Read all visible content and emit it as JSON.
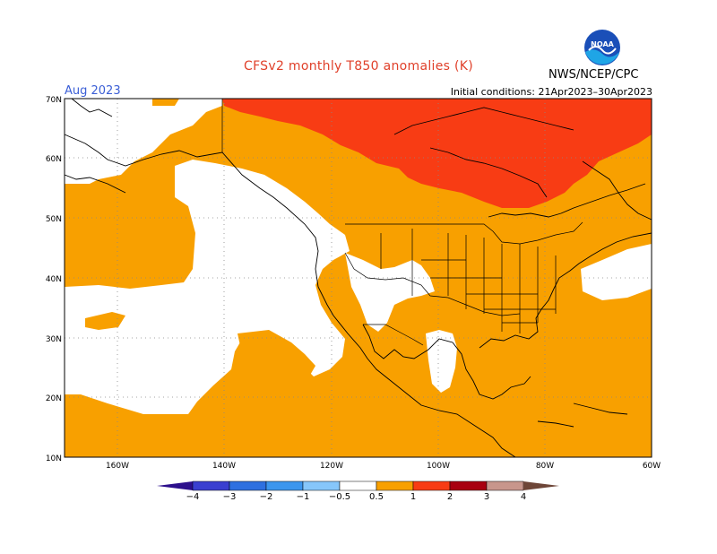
{
  "header": {
    "title": "CFSv2 monthly T850 anomalies (K)",
    "agency": "NWS/NCEP/CPC",
    "month": "Aug 2023",
    "initial_conditions": "Initial conditions: 21Apr2023–30Apr2023"
  },
  "logo": {
    "text": "NOAA"
  },
  "map": {
    "lat_labels": [
      "70N",
      "60N",
      "50N",
      "40N",
      "30N",
      "20N",
      "10N"
    ],
    "lon_labels": [
      "160W",
      "140W",
      "120W",
      "100W",
      "80W",
      "60W"
    ],
    "lon_range": [
      "170W",
      "60W"
    ],
    "lat_range": [
      "10N",
      "70N"
    ]
  },
  "legend": {
    "tick_labels": [
      "−4",
      "−3",
      "−2",
      "−1",
      "−0.5",
      "0.5",
      "1",
      "2",
      "3",
      "4"
    ],
    "colors": [
      "#2c0f8c",
      "#3a3fd0",
      "#2e70e0",
      "#3c96ee",
      "#67b4f4",
      "#86c6fa",
      "#ffffff",
      "#f8a000",
      "#f83c14",
      "#a80010",
      "#c8968c",
      "#6e4638"
    ]
  },
  "colors": {
    "anomaly_0_5_to_1": "#f8a000",
    "anomaly_1_to_2": "#f83c14",
    "neutral": "#ffffff"
  }
}
